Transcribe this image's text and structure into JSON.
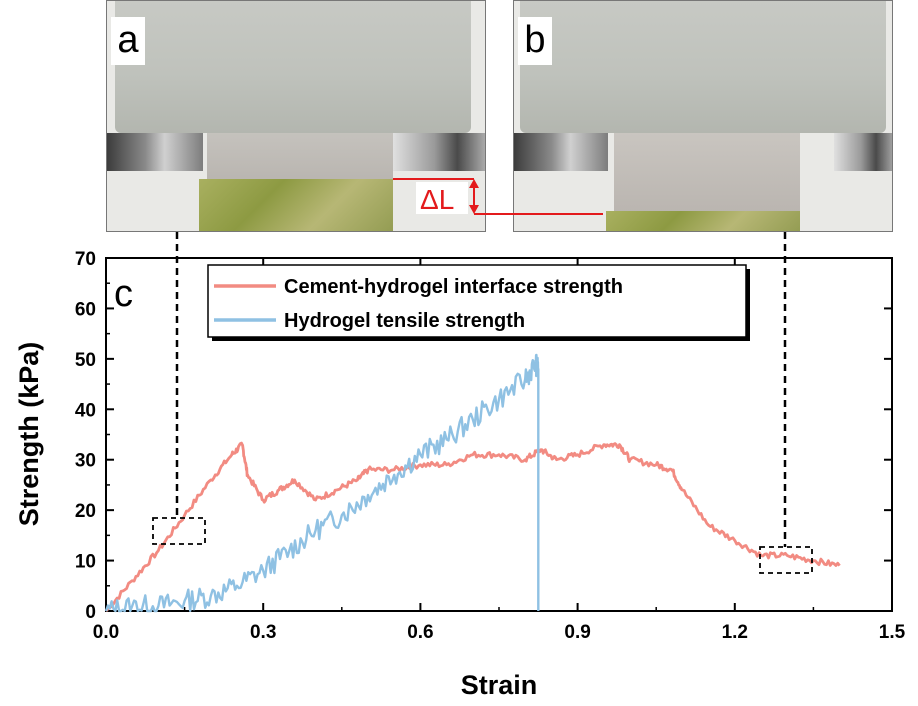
{
  "panels": {
    "a": {
      "label": "a"
    },
    "b": {
      "label": "b"
    },
    "c": {
      "label": "c"
    },
    "delta_label": "ΔL"
  },
  "colors": {
    "interface": "#f28b82",
    "hydrogel": "#8fc1e3",
    "annotation_red": "#e31a1c",
    "dashed": "#000000"
  },
  "chart_data": {
    "type": "line",
    "xlabel": "Strain",
    "ylabel": "Strength (kPa)",
    "xlim": [
      0.0,
      1.5
    ],
    "ylim": [
      0,
      70
    ],
    "xticks": [
      0.0,
      0.3,
      0.6,
      0.9,
      1.2,
      1.5
    ],
    "xtick_labels": [
      "0.0",
      "0.3",
      "0.6",
      "0.9",
      "1.2",
      "1.5"
    ],
    "yticks": [
      0,
      10,
      20,
      30,
      40,
      50,
      60,
      70
    ],
    "ytick_labels": [
      "0",
      "10",
      "20",
      "30",
      "40",
      "50",
      "60",
      "70"
    ],
    "grid": false,
    "legend_position": "top-right",
    "series": [
      {
        "name": "Cement-hydrogel interface strength",
        "color": "#f28b82",
        "x": [
          0.0,
          0.05,
          0.1,
          0.15,
          0.2,
          0.24,
          0.26,
          0.27,
          0.3,
          0.33,
          0.36,
          0.4,
          0.44,
          0.48,
          0.5,
          0.55,
          0.6,
          0.65,
          0.7,
          0.75,
          0.8,
          0.83,
          0.86,
          0.9,
          0.95,
          0.98,
          1.0,
          1.05,
          1.08,
          1.1,
          1.15,
          1.2,
          1.25,
          1.3,
          1.35,
          1.4
        ],
        "y": [
          0,
          6,
          12,
          19,
          26,
          31,
          33,
          27,
          22,
          24,
          26,
          22,
          24,
          26,
          28,
          28,
          29,
          29,
          31,
          31,
          30,
          32,
          30,
          31,
          33,
          33,
          30,
          29,
          28,
          24,
          17,
          14,
          11,
          11,
          10,
          9
        ]
      },
      {
        "name": "Hydrogel tensile strength",
        "color": "#8fc1e3",
        "x": [
          0.0,
          0.05,
          0.1,
          0.15,
          0.2,
          0.25,
          0.3,
          0.35,
          0.4,
          0.45,
          0.5,
          0.55,
          0.6,
          0.65,
          0.7,
          0.75,
          0.8,
          0.82,
          0.825,
          0.825
        ],
        "y": [
          0,
          1,
          1,
          2,
          3,
          5,
          8,
          12,
          16,
          19,
          23,
          27,
          31,
          34,
          38,
          42,
          46,
          49,
          48,
          0
        ]
      }
    ]
  }
}
